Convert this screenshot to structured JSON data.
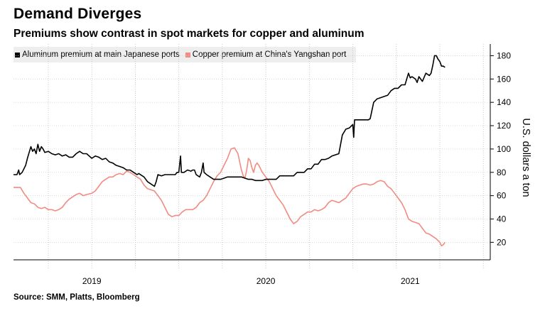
{
  "chart_data": {
    "type": "line",
    "title": "Demand Diverges",
    "subtitle": "Premiums show contrast in spot markets for copper and aluminum",
    "source": "Source: SMM, Platts, Bloomberg",
    "ylabel": "U.S. dollars a ton",
    "ylim": [
      5,
      190
    ],
    "yticks": [
      20,
      40,
      60,
      80,
      100,
      120,
      140,
      160,
      180
    ],
    "xlim": [
      2018.55,
      2021.29
    ],
    "year_boundaries": [
      2018.75,
      2019,
      2019.25,
      2019.5,
      2019.75,
      2020,
      2020.25,
      2020.5,
      2020.75,
      2021,
      2021.25
    ],
    "xticks": [
      {
        "label": "2019",
        "x": 2019.0
      },
      {
        "label": "2020",
        "x": 2020.0
      },
      {
        "label": "2021",
        "x": 2020.83
      }
    ],
    "series": [
      {
        "name": "Aluminum premium at main Japanese ports",
        "color": "#000000",
        "points": [
          [
            2018.55,
            78
          ],
          [
            2018.57,
            78
          ],
          [
            2018.58,
            82
          ],
          [
            2018.585,
            78
          ],
          [
            2018.6,
            80
          ],
          [
            2018.62,
            86
          ],
          [
            2018.63,
            92
          ],
          [
            2018.64,
            97
          ],
          [
            2018.65,
            102
          ],
          [
            2018.66,
            98
          ],
          [
            2018.67,
            100
          ],
          [
            2018.68,
            96
          ],
          [
            2018.69,
            104
          ],
          [
            2018.7,
            98
          ],
          [
            2018.71,
            102
          ],
          [
            2018.72,
            100
          ],
          [
            2018.73,
            97
          ],
          [
            2018.75,
            98
          ],
          [
            2018.77,
            96
          ],
          [
            2018.79,
            95
          ],
          [
            2018.81,
            96
          ],
          [
            2018.83,
            94
          ],
          [
            2018.85,
            95
          ],
          [
            2018.87,
            93
          ],
          [
            2018.89,
            93
          ],
          [
            2018.91,
            96
          ],
          [
            2018.93,
            98
          ],
          [
            2018.95,
            96
          ],
          [
            2018.97,
            96
          ],
          [
            2019.0,
            92
          ],
          [
            2019.02,
            94
          ],
          [
            2019.04,
            93
          ],
          [
            2019.06,
            91
          ],
          [
            2019.08,
            92
          ],
          [
            2019.1,
            89
          ],
          [
            2019.12,
            88
          ],
          [
            2019.14,
            86
          ],
          [
            2019.16,
            85
          ],
          [
            2019.18,
            84
          ],
          [
            2019.2,
            82
          ],
          [
            2019.22,
            82
          ],
          [
            2019.24,
            80
          ],
          [
            2019.26,
            78
          ],
          [
            2019.27,
            79
          ],
          [
            2019.3,
            76
          ],
          [
            2019.32,
            72
          ],
          [
            2019.34,
            70
          ],
          [
            2019.36,
            68
          ],
          [
            2019.37,
            72
          ],
          [
            2019.38,
            78
          ],
          [
            2019.4,
            77
          ],
          [
            2019.42,
            78
          ],
          [
            2019.44,
            78
          ],
          [
            2019.46,
            78
          ],
          [
            2019.48,
            78
          ],
          [
            2019.49,
            80
          ],
          [
            2019.5,
            80
          ],
          [
            2019.51,
            94
          ],
          [
            2019.515,
            80
          ],
          [
            2019.53,
            80
          ],
          [
            2019.55,
            82
          ],
          [
            2019.57,
            81
          ],
          [
            2019.58,
            82
          ],
          [
            2019.59,
            82
          ],
          [
            2019.6,
            78
          ],
          [
            2019.62,
            76
          ],
          [
            2019.63,
            80
          ],
          [
            2019.64,
            88
          ],
          [
            2019.645,
            80
          ],
          [
            2019.66,
            78
          ],
          [
            2019.68,
            76
          ],
          [
            2019.7,
            74
          ],
          [
            2019.72,
            74
          ],
          [
            2019.74,
            74
          ],
          [
            2019.76,
            75
          ],
          [
            2019.78,
            76
          ],
          [
            2019.8,
            76
          ],
          [
            2019.82,
            76
          ],
          [
            2019.84,
            76
          ],
          [
            2019.86,
            76
          ],
          [
            2019.88,
            75
          ],
          [
            2019.9,
            74
          ],
          [
            2019.92,
            74
          ],
          [
            2019.94,
            73
          ],
          [
            2019.96,
            73
          ],
          [
            2019.98,
            73
          ],
          [
            2020.0,
            74
          ],
          [
            2020.02,
            74
          ],
          [
            2020.04,
            74
          ],
          [
            2020.06,
            74
          ],
          [
            2020.08,
            77
          ],
          [
            2020.1,
            77
          ],
          [
            2020.12,
            77
          ],
          [
            2020.14,
            77
          ],
          [
            2020.16,
            77
          ],
          [
            2020.18,
            80
          ],
          [
            2020.2,
            80
          ],
          [
            2020.22,
            80
          ],
          [
            2020.24,
            83
          ],
          [
            2020.26,
            83
          ],
          [
            2020.28,
            87
          ],
          [
            2020.3,
            87
          ],
          [
            2020.32,
            91
          ],
          [
            2020.34,
            91
          ],
          [
            2020.36,
            92
          ],
          [
            2020.38,
            94
          ],
          [
            2020.4,
            95
          ],
          [
            2020.42,
            96
          ],
          [
            2020.44,
            112
          ],
          [
            2020.46,
            117
          ],
          [
            2020.48,
            118
          ],
          [
            2020.5,
            121
          ],
          [
            2020.505,
            110
          ],
          [
            2020.51,
            125
          ],
          [
            2020.53,
            125
          ],
          [
            2020.55,
            125
          ],
          [
            2020.57,
            125
          ],
          [
            2020.59,
            125
          ],
          [
            2020.6,
            126
          ],
          [
            2020.62,
            140
          ],
          [
            2020.64,
            143
          ],
          [
            2020.66,
            144
          ],
          [
            2020.68,
            145
          ],
          [
            2020.7,
            146
          ],
          [
            2020.72,
            150
          ],
          [
            2020.74,
            152
          ],
          [
            2020.76,
            152
          ],
          [
            2020.78,
            155
          ],
          [
            2020.8,
            155
          ],
          [
            2020.82,
            165
          ],
          [
            2020.83,
            161
          ],
          [
            2020.84,
            162
          ],
          [
            2020.86,
            160
          ],
          [
            2020.87,
            157
          ],
          [
            2020.88,
            162
          ],
          [
            2020.9,
            158
          ],
          [
            2020.92,
            165
          ],
          [
            2020.94,
            163
          ],
          [
            2020.95,
            165
          ],
          [
            2020.96,
            172
          ],
          [
            2020.97,
            180
          ],
          [
            2020.98,
            180
          ],
          [
            2020.99,
            177
          ],
          [
            2021.0,
            175
          ],
          [
            2021.01,
            171
          ],
          [
            2021.02,
            171
          ],
          [
            2021.03,
            170
          ]
        ]
      },
      {
        "name": "Copper premium at China's Yangshan port",
        "color": "#f28b82",
        "points": [
          [
            2018.55,
            67
          ],
          [
            2018.57,
            67
          ],
          [
            2018.59,
            67
          ],
          [
            2018.61,
            62
          ],
          [
            2018.63,
            58
          ],
          [
            2018.65,
            54
          ],
          [
            2018.67,
            53
          ],
          [
            2018.69,
            50
          ],
          [
            2018.71,
            49
          ],
          [
            2018.73,
            50
          ],
          [
            2018.75,
            48
          ],
          [
            2018.77,
            48
          ],
          [
            2018.79,
            47
          ],
          [
            2018.81,
            48
          ],
          [
            2018.83,
            50
          ],
          [
            2018.85,
            54
          ],
          [
            2018.87,
            57
          ],
          [
            2018.89,
            59
          ],
          [
            2018.91,
            61
          ],
          [
            2018.93,
            62
          ],
          [
            2018.95,
            60
          ],
          [
            2018.97,
            61
          ],
          [
            2019.0,
            62
          ],
          [
            2019.02,
            64
          ],
          [
            2019.04,
            68
          ],
          [
            2019.06,
            72
          ],
          [
            2019.08,
            74
          ],
          [
            2019.1,
            76
          ],
          [
            2019.12,
            76
          ],
          [
            2019.14,
            78
          ],
          [
            2019.16,
            79
          ],
          [
            2019.18,
            78
          ],
          [
            2019.2,
            81
          ],
          [
            2019.22,
            80
          ],
          [
            2019.24,
            78
          ],
          [
            2019.26,
            76
          ],
          [
            2019.28,
            74
          ],
          [
            2019.3,
            69
          ],
          [
            2019.32,
            66
          ],
          [
            2019.34,
            65
          ],
          [
            2019.36,
            64
          ],
          [
            2019.38,
            60
          ],
          [
            2019.4,
            56
          ],
          [
            2019.42,
            50
          ],
          [
            2019.44,
            44
          ],
          [
            2019.46,
            42
          ],
          [
            2019.48,
            43
          ],
          [
            2019.5,
            43
          ],
          [
            2019.52,
            46
          ],
          [
            2019.54,
            48
          ],
          [
            2019.56,
            48
          ],
          [
            2019.58,
            48
          ],
          [
            2019.6,
            50
          ],
          [
            2019.62,
            54
          ],
          [
            2019.64,
            56
          ],
          [
            2019.66,
            60
          ],
          [
            2019.68,
            66
          ],
          [
            2019.7,
            72
          ],
          [
            2019.72,
            77
          ],
          [
            2019.74,
            80
          ],
          [
            2019.76,
            86
          ],
          [
            2019.78,
            92
          ],
          [
            2019.8,
            100
          ],
          [
            2019.82,
            101
          ],
          [
            2019.84,
            96
          ],
          [
            2019.86,
            82
          ],
          [
            2019.87,
            77
          ],
          [
            2019.88,
            75
          ],
          [
            2019.89,
            82
          ],
          [
            2019.9,
            92
          ],
          [
            2019.91,
            90
          ],
          [
            2019.92,
            84
          ],
          [
            2019.93,
            80
          ],
          [
            2019.94,
            86
          ],
          [
            2019.95,
            88
          ],
          [
            2019.96,
            86
          ],
          [
            2019.98,
            80
          ],
          [
            2020.0,
            76
          ],
          [
            2020.02,
            72
          ],
          [
            2020.04,
            66
          ],
          [
            2020.06,
            60
          ],
          [
            2020.08,
            56
          ],
          [
            2020.1,
            52
          ],
          [
            2020.12,
            46
          ],
          [
            2020.14,
            40
          ],
          [
            2020.16,
            36
          ],
          [
            2020.18,
            38
          ],
          [
            2020.2,
            42
          ],
          [
            2020.22,
            44
          ],
          [
            2020.24,
            46
          ],
          [
            2020.26,
            46
          ],
          [
            2020.28,
            48
          ],
          [
            2020.3,
            47
          ],
          [
            2020.32,
            48
          ],
          [
            2020.34,
            50
          ],
          [
            2020.36,
            54
          ],
          [
            2020.38,
            56
          ],
          [
            2020.4,
            55
          ],
          [
            2020.42,
            54
          ],
          [
            2020.44,
            56
          ],
          [
            2020.46,
            58
          ],
          [
            2020.48,
            62
          ],
          [
            2020.5,
            66
          ],
          [
            2020.52,
            68
          ],
          [
            2020.54,
            69
          ],
          [
            2020.56,
            70
          ],
          [
            2020.58,
            70
          ],
          [
            2020.6,
            69
          ],
          [
            2020.62,
            70
          ],
          [
            2020.64,
            72
          ],
          [
            2020.66,
            73
          ],
          [
            2020.68,
            72
          ],
          [
            2020.7,
            68
          ],
          [
            2020.72,
            66
          ],
          [
            2020.74,
            62
          ],
          [
            2020.76,
            58
          ],
          [
            2020.78,
            54
          ],
          [
            2020.8,
            48
          ],
          [
            2020.82,
            40
          ],
          [
            2020.84,
            38
          ],
          [
            2020.86,
            37
          ],
          [
            2020.88,
            36
          ],
          [
            2020.9,
            32
          ],
          [
            2020.92,
            28
          ],
          [
            2020.94,
            27
          ],
          [
            2020.96,
            25
          ],
          [
            2020.98,
            23
          ],
          [
            2021.0,
            20
          ],
          [
            2021.01,
            17
          ],
          [
            2021.02,
            18
          ],
          [
            2021.03,
            20
          ]
        ]
      }
    ]
  }
}
